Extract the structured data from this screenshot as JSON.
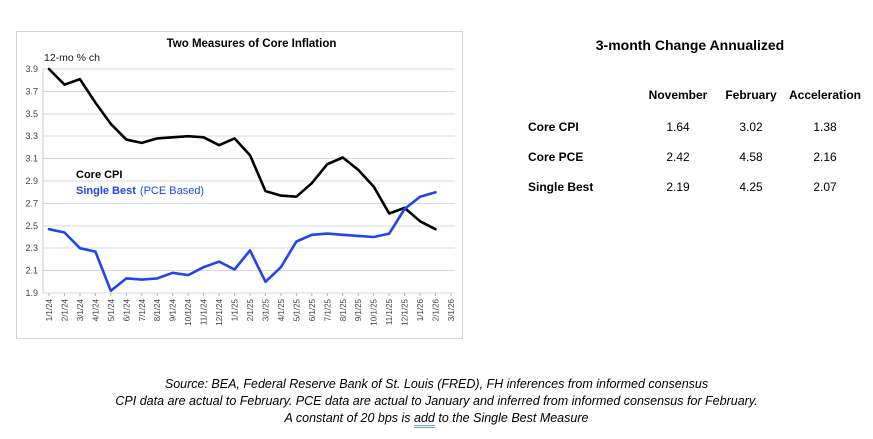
{
  "chart": {
    "title": "Two Measures of Core Inflation",
    "units_label": "12-mo % ch",
    "legend_cpi": "Core CPI",
    "legend_single_best": "Single Best",
    "legend_single_best_note": "(PCE Based)",
    "accent_blue": "#2244ee",
    "line_black": "#000000"
  },
  "chart_data": {
    "type": "line",
    "title": "Two Measures of Core Inflation",
    "ylabel": "12-mo % ch",
    "ylim": [
      1.9,
      3.9
    ],
    "ytick_step": 0.2,
    "grid": true,
    "legend_position": "inside-left",
    "categories": [
      "1/1/24",
      "2/1/24",
      "3/1/24",
      "4/1/24",
      "5/1/24",
      "6/1/24",
      "7/1/24",
      "8/1/24",
      "9/1/24",
      "10/1/24",
      "11/1/24",
      "12/1/24",
      "1/1/25",
      "2/1/25",
      "3/1/25",
      "4/1/25",
      "5/1/25",
      "6/1/25",
      "7/1/25",
      "8/1/25",
      "9/1/25",
      "10/1/25",
      "11/1/25",
      "12/1/25",
      "1/1/26",
      "2/1/26",
      "3/1/26"
    ],
    "series": [
      {
        "name": "Core CPI",
        "color": "#000000",
        "values": [
          3.9,
          3.76,
          3.81,
          3.6,
          3.41,
          3.27,
          3.24,
          3.28,
          3.29,
          3.3,
          3.29,
          3.22,
          3.28,
          3.13,
          2.81,
          2.77,
          2.76,
          2.88,
          3.05,
          3.11,
          3.0,
          2.85,
          2.61,
          2.66,
          2.54,
          2.47,
          null
        ]
      },
      {
        "name": "Single Best (PCE Based)",
        "color": "#2244ee",
        "values": [
          2.47,
          2.44,
          2.3,
          2.27,
          1.92,
          2.03,
          2.02,
          2.03,
          2.08,
          2.06,
          2.13,
          2.18,
          2.11,
          2.28,
          2.0,
          2.13,
          2.36,
          2.42,
          2.43,
          2.42,
          2.41,
          2.4,
          2.43,
          2.65,
          2.76,
          2.8,
          null
        ]
      }
    ]
  },
  "table": {
    "title": "3-month Change Annualized",
    "columns": [
      "November",
      "February",
      "Acceleration"
    ],
    "rows": [
      {
        "label": "Core CPI",
        "values": [
          "1.64",
          "3.02",
          "1.38"
        ]
      },
      {
        "label": "Core PCE",
        "values": [
          "2.42",
          "4.58",
          "2.16"
        ]
      },
      {
        "label": "Single Best",
        "values": [
          "2.19",
          "4.25",
          "2.07"
        ]
      }
    ]
  },
  "footer": {
    "line1": "Source: BEA, Federal Reserve Bank of St. Louis (FRED), FH inferences from informed consensus",
    "line2": "CPI data are actual to February.  PCE data are actual to January and inferred from informed consensus for February.",
    "line3_prefix": "A constant of 20 bps is ",
    "line3_underlined": "add",
    "line3_suffix": " to the Single Best Measure"
  }
}
